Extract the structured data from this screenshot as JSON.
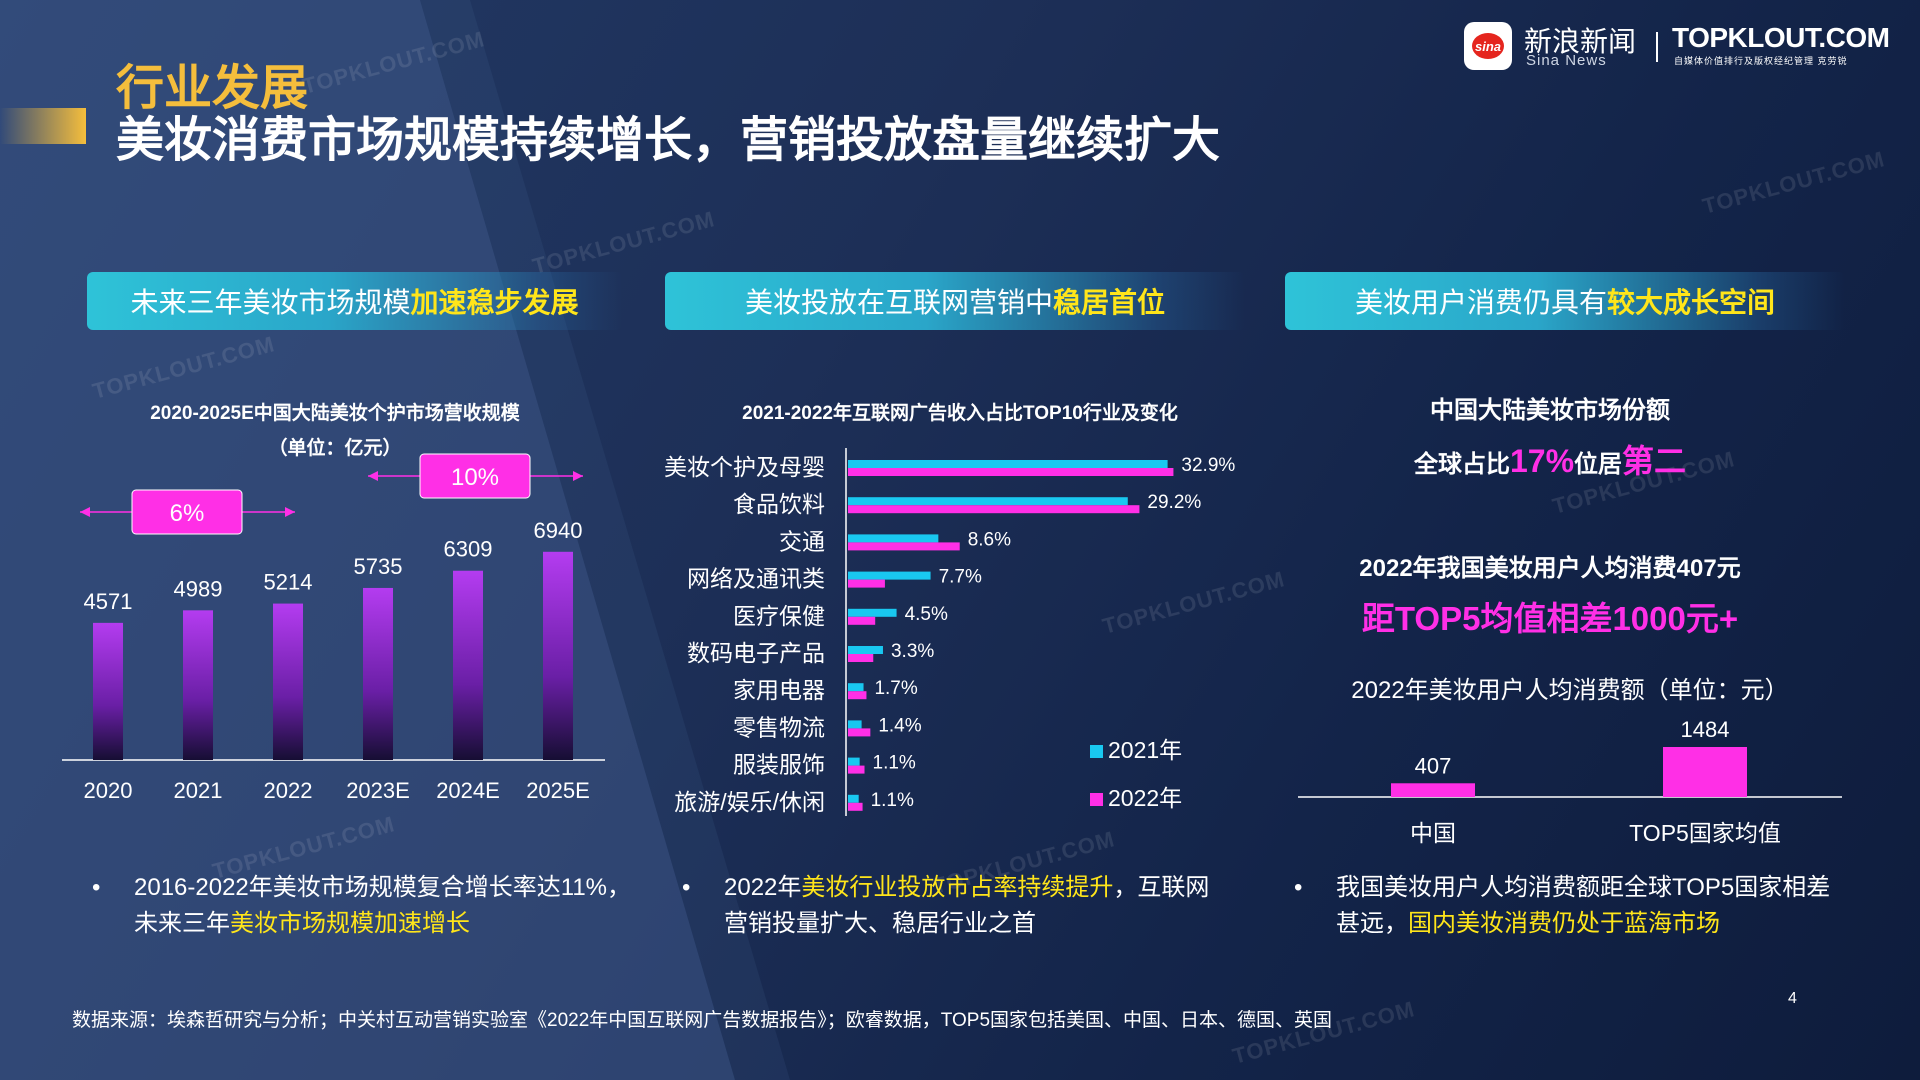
{
  "header": {
    "section_label": "行业发展",
    "title": "美妆消费市场规模持续增长，营销投放盘量继续扩大",
    "sina_logo_text": "sina",
    "sina_name": "新浪新闻",
    "sina_en": "Sina News",
    "topklout_name": "TOPKLOUT.COM",
    "topklout_sub": "自媒体价值排行及版权经纪管理 克劳锐"
  },
  "watermark_text": "TOPKLOUT.COM",
  "colors": {
    "accent": "#f5be3c",
    "magenta": "#ff2fe6",
    "cyan": "#19c8f0",
    "highlight": "#ffe51a"
  },
  "panels": [
    {
      "banner_text": "未来三年美妆市场规模",
      "banner_highlight": "加速稳步发展",
      "bullet_text": "2016-2022年美妆市场规模复合增长率达11%，",
      "bullet_text2": "未来三年",
      "bullet_highlight": "美妆市场规模加速增长"
    },
    {
      "banner_text": "美妆投放在互联网营销中",
      "banner_highlight": "稳居首位",
      "bullet_text": "2022年",
      "bullet_highlight": "美妆行业投放市占率持续提升",
      "bullet_text2": "，互联网",
      "bullet_text3": "营销投量扩大、稳居行业之首"
    },
    {
      "banner_text": "美妆用户消费仍具有",
      "banner_highlight": "较大成长空间",
      "bullet_text": "我国美妆用户人均消费额距全球TOP5国家相差",
      "bullet_text2": "甚远，",
      "bullet_highlight": "国内美妆消费仍处于蓝海市场"
    }
  ],
  "right_stats": {
    "line1": "中国大陆美妆市场份额",
    "line2_pre": "全球占比",
    "line2_pct": "17%",
    "line2_mid": "位居",
    "line2_rank": "第二",
    "line3": "2022年我国美妆用户人均消费407元",
    "line4": "距TOP5均值相差1000元+"
  },
  "chart_data": [
    {
      "type": "bar",
      "title": "2020-2025E中国大陆美妆个护市场营收规模",
      "subtitle": "（单位：亿元）",
      "categories": [
        "2020",
        "2021",
        "2022",
        "2023E",
        "2024E",
        "2025E"
      ],
      "values": [
        4571,
        4989,
        5214,
        5735,
        6309,
        6940
      ],
      "annotations": [
        "6%",
        "10%"
      ],
      "ylim": [
        0,
        7500
      ],
      "grid": false
    },
    {
      "type": "bar",
      "orientation": "horizontal",
      "title": "2021-2022年互联网广告收入占比TOP10行业及变化",
      "categories": [
        "美妆个护及母婴",
        "食品饮料",
        "交通",
        "网络及通讯类",
        "医疗保健",
        "数码电子产品",
        "家用电器",
        "零售物流",
        "服装服饰",
        "旅游/娱乐/休闲"
      ],
      "labels": [
        "32.9%",
        "29.2%",
        "8.6%",
        "7.7%",
        "4.5%",
        "3.3%",
        "1.7%",
        "1.4%",
        "1.1%",
        "1.1%"
      ],
      "series": [
        {
          "name": "2021年",
          "values": [
            32.9,
            28.8,
            9.3,
            8.5,
            5.0,
            3.6,
            1.6,
            1.4,
            1.2,
            1.1
          ]
        },
        {
          "name": "2022年",
          "values": [
            33.5,
            30.0,
            11.5,
            3.8,
            2.8,
            2.6,
            1.9,
            2.3,
            1.7,
            1.5
          ]
        }
      ],
      "legend": "bottom-right",
      "xlim": [
        0,
        35
      ]
    },
    {
      "type": "bar",
      "title": "2022年美妆用户人均消费额（单位：元）",
      "categories": [
        "中国",
        "TOP5国家均值"
      ],
      "values": [
        407,
        1484
      ],
      "ylim": [
        0,
        1600
      ]
    }
  ],
  "footnote": "数据来源：埃森哲研究与分析；中关村互动营销实验室《2022年中国互联网广告数据报告》；欧睿数据，TOP5国家包括美国、中国、日本、德国、英国",
  "page_number": "4"
}
